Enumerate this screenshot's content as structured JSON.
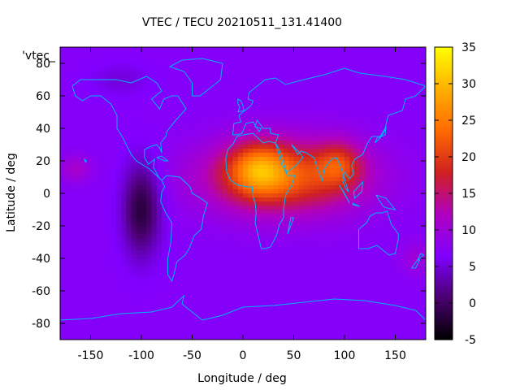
{
  "chart_data": {
    "type": "heatmap",
    "title": "VTEC / TECU 20210511_131.41400",
    "xlabel": "Longitude / deg",
    "ylabel": "Latitude / deg",
    "xlim": [
      -180,
      180
    ],
    "ylim": [
      -90,
      90
    ],
    "x_ticks": [
      -150,
      -100,
      -50,
      0,
      50,
      100,
      150
    ],
    "y_ticks": [
      -80,
      -60,
      -40,
      -20,
      0,
      20,
      40,
      60,
      80
    ],
    "colorbar": {
      "range": [
        -5,
        35
      ],
      "ticks": [
        -5,
        0,
        5,
        10,
        15,
        20,
        25,
        30,
        35
      ],
      "palette": [
        "#000000",
        "#4a0070",
        "#8000ff",
        "#b000c0",
        "#d02020",
        "#ff6a00",
        "#ffb000",
        "#ffff00"
      ]
    },
    "legend_label": "'vtec_",
    "features": [
      {
        "name": "background",
        "value": 7
      },
      {
        "name": "north-africa-peak",
        "lon": 15,
        "lat": 15,
        "value": 33
      },
      {
        "name": "south-asia-peak",
        "lon": 95,
        "lat": 18,
        "value": 30
      },
      {
        "name": "equatorial-band",
        "lon": 40,
        "lat": 10,
        "value": 22
      },
      {
        "name": "east-pacific-minimum",
        "lon": -100,
        "lat": -10,
        "value": -2
      }
    ],
    "coastline_color": "#00b4ff"
  }
}
